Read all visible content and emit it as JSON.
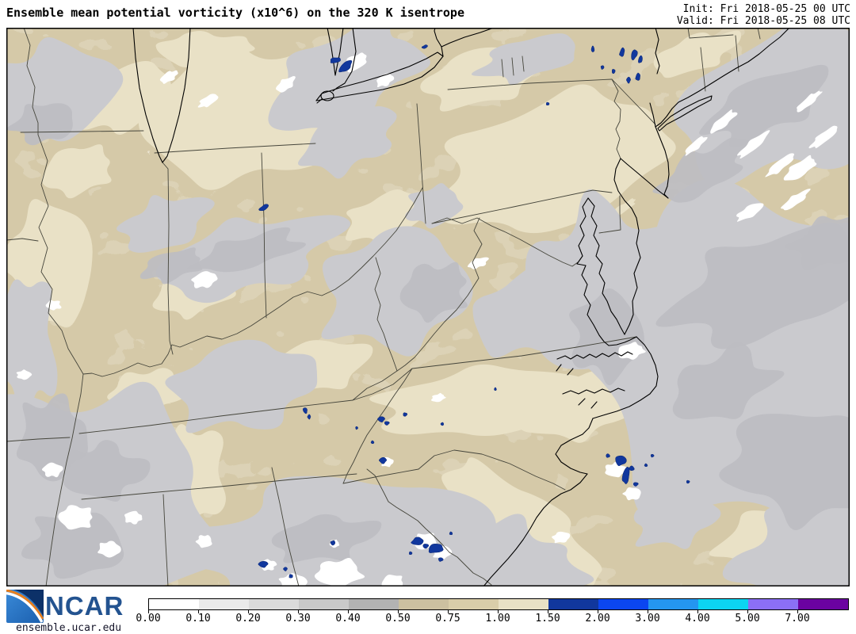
{
  "header": {
    "title": "Ensemble mean potential vorticity (x10^6) on the 320 K isentrope",
    "init": "Init: Fri 2018-05-25 00 UTC",
    "valid": "Valid: Fri 2018-05-25 08 UTC"
  },
  "branding": {
    "logo_text": "NCAR",
    "site": "ensemble.ucar.edu"
  },
  "colorbar": {
    "tick_labels": [
      "0.00",
      "0.10",
      "0.20",
      "0.30",
      "0.40",
      "0.50",
      "0.75",
      "1.00",
      "1.50",
      "2.00",
      "3.00",
      "4.00",
      "5.00",
      "7.00"
    ],
    "segment_colors": [
      "#ffffff",
      "#eaeaea",
      "#dbdbdb",
      "#c9c9c9",
      "#b3b3b3",
      "#ccc0a0",
      "#d9cda9",
      "#e9e1c5",
      "#11379d",
      "#0b46f0",
      "#2496f0",
      "#0cd4f2",
      "#8b6ff5",
      "#6b02a1"
    ]
  },
  "map": {
    "palette": {
      "base_tan": "#d5c9a8",
      "dark_tan": "#c3b58e",
      "cream": "#e9e1c6",
      "gray_light": "#cacace",
      "gray_mid": "#bdbdc2",
      "white": "#ffffff",
      "navy": "#11379d",
      "navy_edge": "#0a2470",
      "border": "#45453b",
      "coast": "#000000",
      "frame": "#000000"
    }
  }
}
